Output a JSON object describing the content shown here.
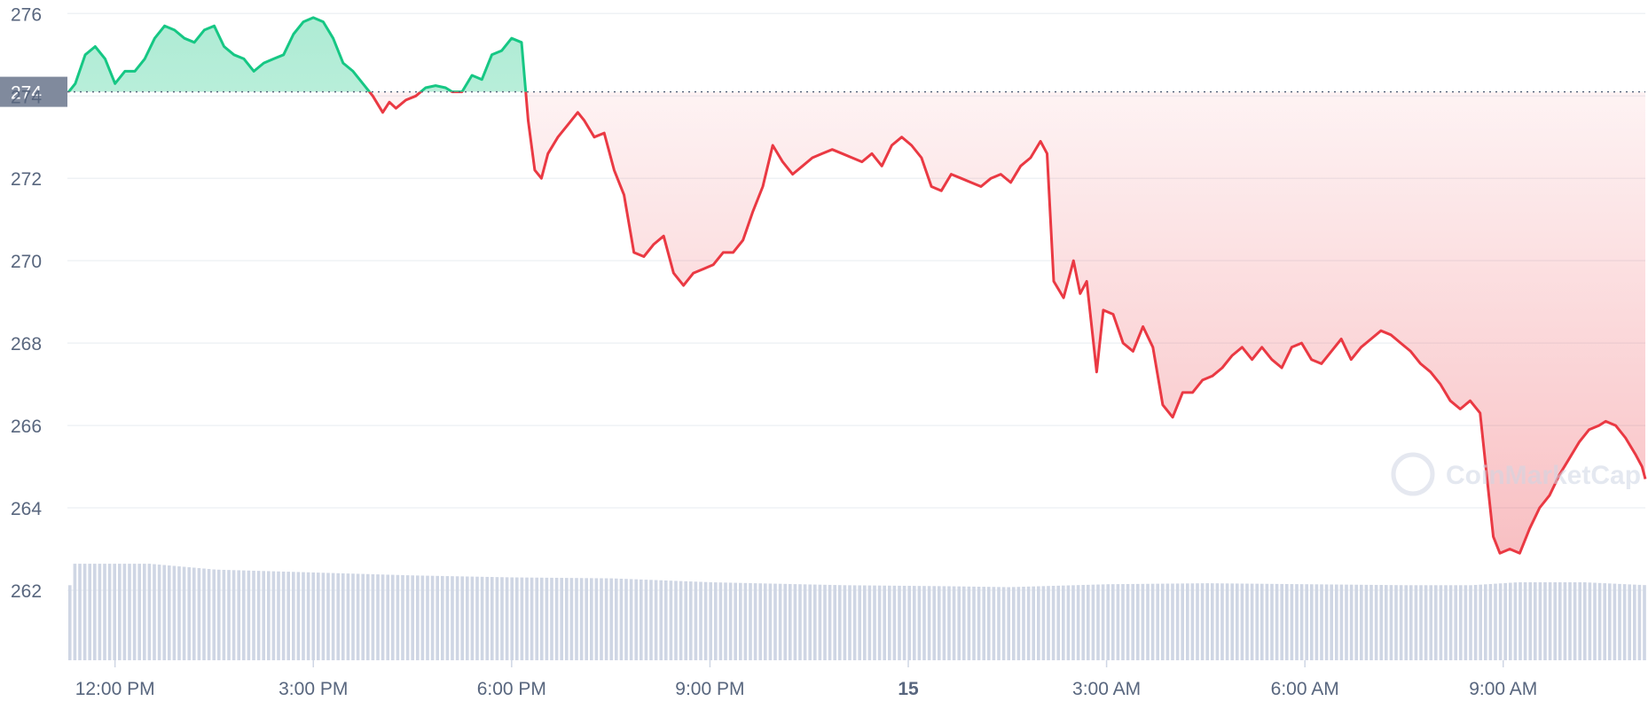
{
  "chart_data": {
    "type": "line",
    "y_range": [
      260.3,
      276.2
    ],
    "y_ticks": [
      262,
      264,
      266,
      268,
      270,
      272,
      274,
      276
    ],
    "y_tick_labels": [
      "262",
      "264",
      "266",
      "268",
      "270",
      "272",
      "274",
      "276"
    ],
    "x_ticks": [
      {
        "label": "12:00 PM",
        "t": 12,
        "bold": false
      },
      {
        "label": "3:00 PM",
        "t": 15,
        "bold": false
      },
      {
        "label": "6:00 PM",
        "t": 18,
        "bold": false
      },
      {
        "label": "9:00 PM",
        "t": 21,
        "bold": false
      },
      {
        "label": "15",
        "t": 24,
        "bold": true
      },
      {
        "label": "3:00 AM",
        "t": 27,
        "bold": false
      },
      {
        "label": "6:00 AM",
        "t": 30,
        "bold": false
      },
      {
        "label": "9:00 AM",
        "t": 33,
        "bold": false
      }
    ],
    "x_range_hours": [
      11.28,
      35.15
    ],
    "reference_price": 274.1,
    "reference_label": "274",
    "colors": {
      "up_line": "#16c784",
      "down_line": "#ea3943",
      "reference_tag": "#808a9d",
      "volume": "#cfd6e4",
      "grid": "#eff2f5"
    },
    "series": [
      {
        "points": [
          [
            11.3,
            274.1
          ],
          [
            11.4,
            274.3
          ],
          [
            11.55,
            275.0
          ],
          [
            11.7,
            275.2
          ],
          [
            11.85,
            274.9
          ],
          [
            12.0,
            274.3
          ],
          [
            12.15,
            274.6
          ],
          [
            12.3,
            274.6
          ],
          [
            12.45,
            274.9
          ],
          [
            12.6,
            275.4
          ],
          [
            12.75,
            275.7
          ],
          [
            12.9,
            275.6
          ],
          [
            13.05,
            275.4
          ],
          [
            13.2,
            275.3
          ],
          [
            13.35,
            275.6
          ],
          [
            13.5,
            275.7
          ],
          [
            13.65,
            275.2
          ],
          [
            13.8,
            275.0
          ],
          [
            13.95,
            274.9
          ],
          [
            14.1,
            274.6
          ],
          [
            14.25,
            274.8
          ],
          [
            14.4,
            274.9
          ],
          [
            14.55,
            275.0
          ],
          [
            14.7,
            275.5
          ],
          [
            14.85,
            275.8
          ],
          [
            15.0,
            275.9
          ],
          [
            15.15,
            275.8
          ],
          [
            15.3,
            275.4
          ],
          [
            15.45,
            274.8
          ],
          [
            15.6,
            274.6
          ],
          [
            15.75,
            274.3
          ],
          [
            15.9,
            274.0
          ],
          [
            16.05,
            273.6
          ],
          [
            16.15,
            273.85
          ],
          [
            16.25,
            273.7
          ],
          [
            16.4,
            273.9
          ],
          [
            16.55,
            274.0
          ],
          [
            16.7,
            274.2
          ],
          [
            16.85,
            274.25
          ],
          [
            17.0,
            274.2
          ],
          [
            17.1,
            274.1
          ],
          [
            17.25,
            274.1
          ],
          [
            17.4,
            274.5
          ],
          [
            17.55,
            274.4
          ],
          [
            17.7,
            275.0
          ],
          [
            17.85,
            275.1
          ],
          [
            18.0,
            275.4
          ],
          [
            18.15,
            275.3
          ],
          [
            18.25,
            273.4
          ],
          [
            18.35,
            272.2
          ],
          [
            18.45,
            272.0
          ],
          [
            18.55,
            272.6
          ],
          [
            18.7,
            273.0
          ],
          [
            18.85,
            273.3
          ],
          [
            19.0,
            273.6
          ],
          [
            19.1,
            273.4
          ],
          [
            19.25,
            273.0
          ],
          [
            19.4,
            273.1
          ],
          [
            19.55,
            272.2
          ],
          [
            19.7,
            271.6
          ],
          [
            19.85,
            270.2
          ],
          [
            20.0,
            270.1
          ],
          [
            20.15,
            270.4
          ],
          [
            20.3,
            270.6
          ],
          [
            20.45,
            269.7
          ],
          [
            20.6,
            269.4
          ],
          [
            20.75,
            269.7
          ],
          [
            20.9,
            269.8
          ],
          [
            21.05,
            269.9
          ],
          [
            21.2,
            270.2
          ],
          [
            21.35,
            270.2
          ],
          [
            21.5,
            270.5
          ],
          [
            21.65,
            271.2
          ],
          [
            21.8,
            271.8
          ],
          [
            21.95,
            272.8
          ],
          [
            22.1,
            272.4
          ],
          [
            22.25,
            272.1
          ],
          [
            22.4,
            272.3
          ],
          [
            22.55,
            272.5
          ],
          [
            22.7,
            272.6
          ],
          [
            22.85,
            272.7
          ],
          [
            23.0,
            272.6
          ],
          [
            23.15,
            272.5
          ],
          [
            23.3,
            272.4
          ],
          [
            23.45,
            272.6
          ],
          [
            23.6,
            272.3
          ],
          [
            23.75,
            272.8
          ],
          [
            23.9,
            273.0
          ],
          [
            24.05,
            272.8
          ],
          [
            24.2,
            272.5
          ],
          [
            24.35,
            271.8
          ],
          [
            24.5,
            271.7
          ],
          [
            24.65,
            272.1
          ],
          [
            24.8,
            272.0
          ],
          [
            24.95,
            271.9
          ],
          [
            25.1,
            271.8
          ],
          [
            25.25,
            272.0
          ],
          [
            25.4,
            272.1
          ],
          [
            25.55,
            271.9
          ],
          [
            25.7,
            272.3
          ],
          [
            25.85,
            272.5
          ],
          [
            26.0,
            272.9
          ],
          [
            26.1,
            272.6
          ],
          [
            26.2,
            269.5
          ],
          [
            26.35,
            269.1
          ],
          [
            26.5,
            270.0
          ],
          [
            26.6,
            269.2
          ],
          [
            26.7,
            269.5
          ],
          [
            26.85,
            267.3
          ],
          [
            26.95,
            268.8
          ],
          [
            27.1,
            268.7
          ],
          [
            27.25,
            268.0
          ],
          [
            27.4,
            267.8
          ],
          [
            27.55,
            268.4
          ],
          [
            27.7,
            267.9
          ],
          [
            27.85,
            266.5
          ],
          [
            28.0,
            266.2
          ],
          [
            28.15,
            266.8
          ],
          [
            28.3,
            266.8
          ],
          [
            28.45,
            267.1
          ],
          [
            28.6,
            267.2
          ],
          [
            28.75,
            267.4
          ],
          [
            28.9,
            267.7
          ],
          [
            29.05,
            267.9
          ],
          [
            29.2,
            267.6
          ],
          [
            29.35,
            267.9
          ],
          [
            29.5,
            267.6
          ],
          [
            29.65,
            267.4
          ],
          [
            29.8,
            267.9
          ],
          [
            29.95,
            268.0
          ],
          [
            30.1,
            267.6
          ],
          [
            30.25,
            267.5
          ],
          [
            30.4,
            267.8
          ],
          [
            30.55,
            268.1
          ],
          [
            30.7,
            267.6
          ],
          [
            30.85,
            267.9
          ],
          [
            31.0,
            268.1
          ],
          [
            31.15,
            268.3
          ],
          [
            31.3,
            268.2
          ],
          [
            31.45,
            268.0
          ],
          [
            31.6,
            267.8
          ],
          [
            31.75,
            267.5
          ],
          [
            31.9,
            267.3
          ],
          [
            32.05,
            267.0
          ],
          [
            32.2,
            266.6
          ],
          [
            32.35,
            266.4
          ],
          [
            32.5,
            266.6
          ],
          [
            32.65,
            266.3
          ],
          [
            32.75,
            264.8
          ],
          [
            32.85,
            263.3
          ],
          [
            32.95,
            262.9
          ],
          [
            33.1,
            263.0
          ],
          [
            33.25,
            262.9
          ],
          [
            33.4,
            263.5
          ],
          [
            33.55,
            264.0
          ],
          [
            33.7,
            264.3
          ],
          [
            33.85,
            264.8
          ],
          [
            34.0,
            265.2
          ],
          [
            34.15,
            265.6
          ],
          [
            34.3,
            265.9
          ],
          [
            34.45,
            266.0
          ],
          [
            34.55,
            266.1
          ],
          [
            34.7,
            266.0
          ],
          [
            34.85,
            265.7
          ],
          [
            35.0,
            265.3
          ],
          [
            35.1,
            265.0
          ],
          [
            35.15,
            264.7
          ]
        ]
      }
    ],
    "volume": {
      "range": [
        0,
        1
      ],
      "levels": [
        [
          11.3,
          0.99
        ],
        [
          12.5,
          0.99
        ],
        [
          13.5,
          0.93
        ],
        [
          15.0,
          0.9
        ],
        [
          16.5,
          0.87
        ],
        [
          18.0,
          0.85
        ],
        [
          19.5,
          0.84
        ],
        [
          21.0,
          0.8
        ],
        [
          23.0,
          0.77
        ],
        [
          24.5,
          0.76
        ],
        [
          25.5,
          0.75
        ],
        [
          27.0,
          0.78
        ],
        [
          28.5,
          0.79
        ],
        [
          30.0,
          0.78
        ],
        [
          31.5,
          0.77
        ],
        [
          32.5,
          0.77
        ],
        [
          33.2,
          0.8
        ],
        [
          34.2,
          0.8
        ],
        [
          35.15,
          0.77
        ]
      ]
    }
  },
  "watermark": {
    "text": "CoinMarketCap"
  }
}
